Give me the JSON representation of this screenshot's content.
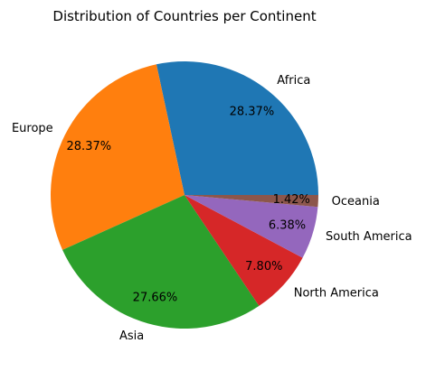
{
  "chart_data": {
    "type": "pie",
    "title": "Distribution of Countries per Continent",
    "categories": [
      "Africa",
      "Europe",
      "Asia",
      "North America",
      "South America",
      "Oceania"
    ],
    "values": [
      28.37,
      28.37,
      27.66,
      7.8,
      6.38,
      1.42
    ],
    "value_labels": [
      "28.37%",
      "28.37%",
      "27.66%",
      "7.80%",
      "6.38%",
      "1.42%"
    ],
    "colors": [
      "#1f77b4",
      "#ff7f0e",
      "#2ca02c",
      "#d62728",
      "#9467bd",
      "#8c564b"
    ],
    "start_angle": 0,
    "direction": "counterclockwise",
    "legend": "none"
  }
}
